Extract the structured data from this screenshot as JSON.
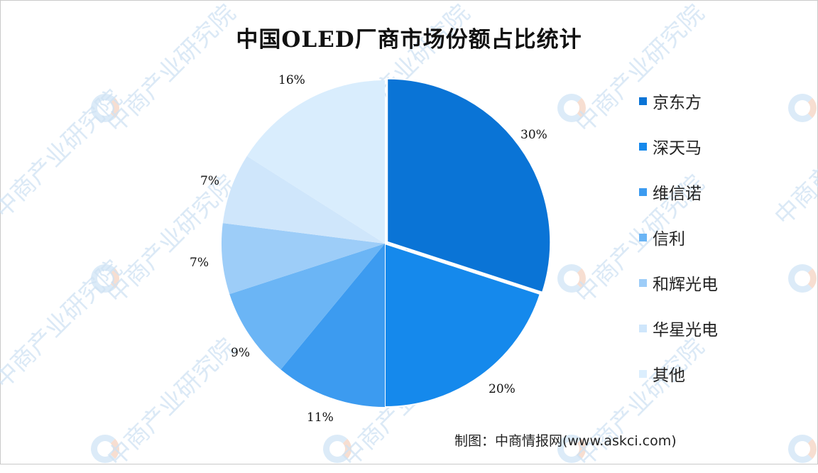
{
  "chart_data": {
    "type": "pie",
    "title": "中国OLED厂商市场份额占比统计",
    "categories": [
      "京东方",
      "深天马",
      "维信诺",
      "信利",
      "和辉光电",
      "华星光电",
      "其他"
    ],
    "values": [
      30,
      20,
      11,
      9,
      7,
      7,
      16
    ],
    "labels": [
      "30%",
      "20%",
      "11%",
      "9%",
      "7%",
      "7%",
      "16%"
    ],
    "colors": [
      "#0a74d6",
      "#1589ec",
      "#3c9bf0",
      "#6bb5f5",
      "#9dcdf8",
      "#cfe6fb",
      "#d9edfd"
    ],
    "legend_position": "right",
    "start_angle": "12 o'clock, clockwise"
  },
  "title": "中国OLED厂商市场份额占比统计",
  "legend": [
    {
      "label": "京东方",
      "color": "#0a74d6"
    },
    {
      "label": "深天马",
      "color": "#1589ec"
    },
    {
      "label": "维信诺",
      "color": "#3c9bf0"
    },
    {
      "label": "信利",
      "color": "#6bb5f5"
    },
    {
      "label": "和辉光电",
      "color": "#9dcdf8"
    },
    {
      "label": "华星光电",
      "color": "#cfe6fb"
    },
    {
      "label": "其他",
      "color": "#dbeefd"
    }
  ],
  "pct_labels": [
    "30%",
    "20%",
    "11%",
    "9%",
    "7%",
    "7%",
    "16%"
  ],
  "source": "制图：中商情报网(www.askci.com)",
  "watermark": "中商产业研究院"
}
